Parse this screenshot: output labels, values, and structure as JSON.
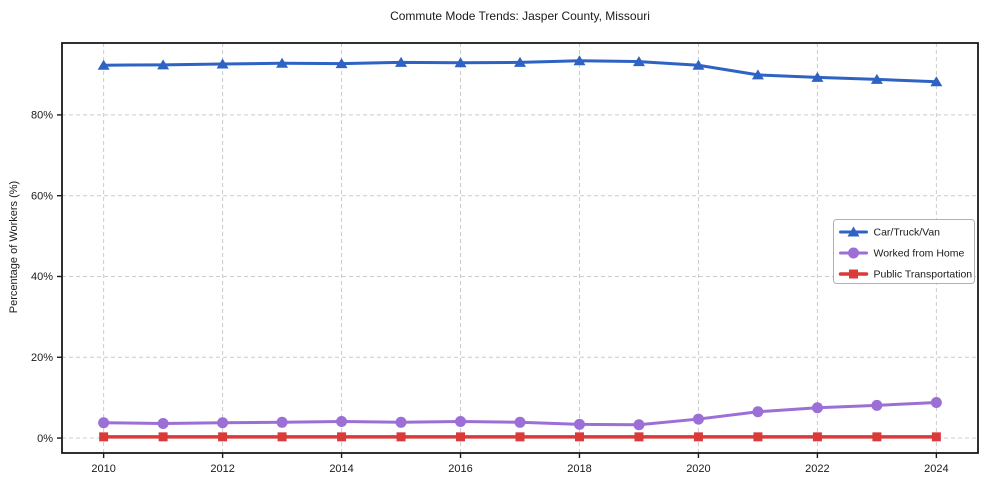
{
  "figure": {
    "title": "Commute Mode Trends: Jasper County, Missouri",
    "ylabel": "Percentage of Workers (%)"
  },
  "chart_data": {
    "type": "line",
    "title": "Commute Mode Trends: Jasper County, Missouri",
    "xlabel": "",
    "ylabel": "Percentage of Workers (%)",
    "x": [
      2010,
      2011,
      2012,
      2013,
      2014,
      2015,
      2016,
      2017,
      2018,
      2019,
      2020,
      2021,
      2022,
      2023,
      2024
    ],
    "series": [
      {
        "name": "Car/Truck/Van",
        "marker": "triangle",
        "color": "#2e63c4",
        "values": [
          92.3,
          92.4,
          92.6,
          92.8,
          92.7,
          93.0,
          92.9,
          93.0,
          93.4,
          93.2,
          92.3,
          89.9,
          89.3,
          88.8,
          88.2
        ]
      },
      {
        "name": "Worked from Home",
        "marker": "circle",
        "color": "#9b6fd6",
        "values": [
          3.8,
          3.6,
          3.8,
          3.9,
          4.1,
          3.9,
          4.1,
          3.9,
          3.4,
          3.3,
          4.7,
          6.5,
          7.5,
          8.1,
          8.8
        ]
      },
      {
        "name": "Public Transportation",
        "marker": "square",
        "color": "#d93b3b",
        "values": [
          0.3,
          0.3,
          0.3,
          0.3,
          0.3,
          0.3,
          0.3,
          0.3,
          0.3,
          0.3,
          0.3,
          0.3,
          0.3,
          0.3,
          0.3
        ]
      }
    ],
    "x_ticks": [
      2010,
      2012,
      2014,
      2016,
      2018,
      2020,
      2022,
      2024
    ],
    "x_tick_labels": [
      "2010",
      "2012",
      "2014",
      "2016",
      "2018",
      "2020",
      "2022",
      "2024"
    ],
    "y_ticks": [
      0,
      20,
      40,
      60,
      80
    ],
    "y_tick_labels": [
      "0%",
      "20%",
      "40%",
      "60%",
      "80%"
    ],
    "xlim": [
      2009.3,
      2024.7
    ],
    "ylim": [
      -3.7,
      97.8
    ],
    "grid": true,
    "grid_style": "dashed",
    "grid_color": "#cccccc",
    "spine_color": "#1a1a1a",
    "legend_position": "center-right"
  }
}
